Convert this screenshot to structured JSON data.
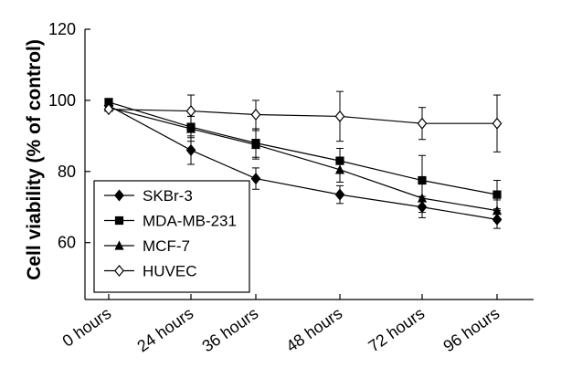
{
  "chart_data": {
    "type": "line",
    "title": "",
    "xlabel": "",
    "ylabel": "Cell viability (% of control)",
    "categories": [
      "0 hours",
      "24 hours",
      "36 hours",
      "48 hours",
      "72 hours",
      "96 hours"
    ],
    "yticks": [
      "60",
      "80",
      "100",
      "120"
    ],
    "ylim": [
      44,
      120
    ],
    "grid": false,
    "legend_position": "bottom-left",
    "series": [
      {
        "name": "SKBr-3",
        "marker": "diamond-filled",
        "values": [
          98.5,
          86,
          78,
          73.5,
          70,
          66.5
        ],
        "errors": [
          0,
          4,
          3,
          2.5,
          3,
          2.5
        ]
      },
      {
        "name": "MDA-MB-231",
        "marker": "square-filled",
        "values": [
          99.5,
          92.5,
          88,
          83,
          77.5,
          73.5
        ],
        "errors": [
          0,
          3,
          4,
          3.5,
          7,
          4
        ]
      },
      {
        "name": "MCF-7",
        "marker": "triangle-filled",
        "values": [
          98,
          92,
          87.5,
          80.5,
          72.5,
          69
        ],
        "errors": [
          0,
          3.5,
          4,
          3.5,
          4,
          3
        ]
      },
      {
        "name": "HUVEC",
        "marker": "diamond-open",
        "values": [
          97.5,
          97,
          96,
          95.5,
          93.5,
          93.5
        ],
        "errors": [
          0,
          4.5,
          4,
          7,
          4.5,
          8
        ]
      }
    ]
  }
}
